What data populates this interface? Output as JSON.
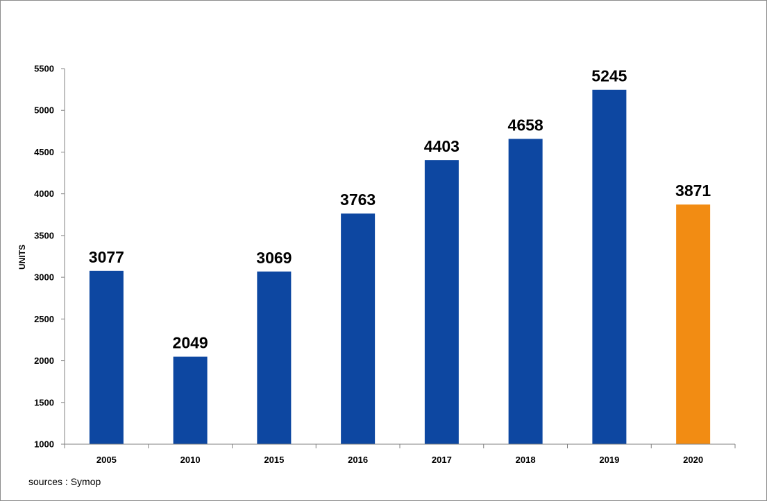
{
  "chart_data": {
    "type": "bar",
    "title": "",
    "xlabel": "",
    "ylabel": "UNITS",
    "ylim": [
      1000,
      5500
    ],
    "y_ticks": [
      1000,
      1500,
      2000,
      2500,
      3000,
      3500,
      4000,
      4500,
      5000,
      5500
    ],
    "grid": false,
    "legend": "none",
    "categories": [
      "2005",
      "2010",
      "2015",
      "2016",
      "2017",
      "2018",
      "2019",
      "2020"
    ],
    "values": [
      3077,
      2049,
      3069,
      3763,
      4403,
      4658,
      5245,
      3871
    ],
    "bar_colors": [
      "#0d47a1",
      "#0d47a1",
      "#0d47a1",
      "#0d47a1",
      "#0d47a1",
      "#0d47a1",
      "#0d47a1",
      "#f28c13"
    ],
    "axis_color": "#808080"
  },
  "source_note": "sources : Symop"
}
